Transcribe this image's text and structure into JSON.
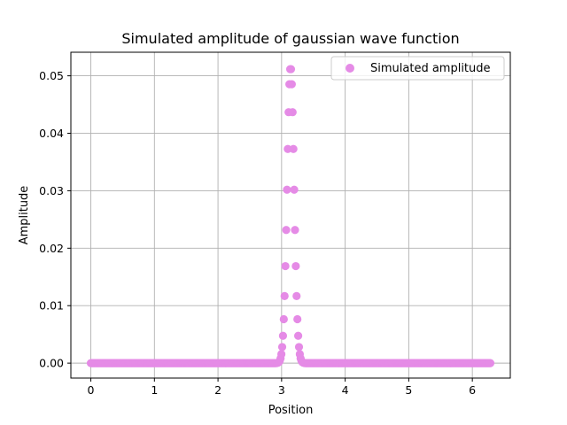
{
  "chart_data": {
    "type": "scatter",
    "title": "Simulated amplitude of gaussian wave function",
    "xlabel": "Position",
    "ylabel": "Amplitude",
    "xlim": [
      -0.314,
      6.597
    ],
    "ylim": [
      -0.0026,
      0.0541
    ],
    "x_ticks": [
      0,
      1,
      2,
      3,
      4,
      5,
      6
    ],
    "y_ticks": [
      0.0,
      0.01,
      0.02,
      0.03,
      0.04,
      0.05
    ],
    "x_tick_labels": [
      "0",
      "1",
      "2",
      "3",
      "4",
      "5",
      "6"
    ],
    "y_tick_labels": [
      "0.00",
      "0.01",
      "0.02",
      "0.03",
      "0.04",
      "0.05"
    ],
    "grid": true,
    "legend_position": "top-right",
    "series": [
      {
        "name": "Simulated amplitude",
        "color": "#e58be6",
        "x_range": [
          0,
          6.2832
        ],
        "n_points": 500,
        "peak_x": 3.1416,
        "peak_y": 0.0515,
        "sigma": 0.0548
      }
    ]
  }
}
